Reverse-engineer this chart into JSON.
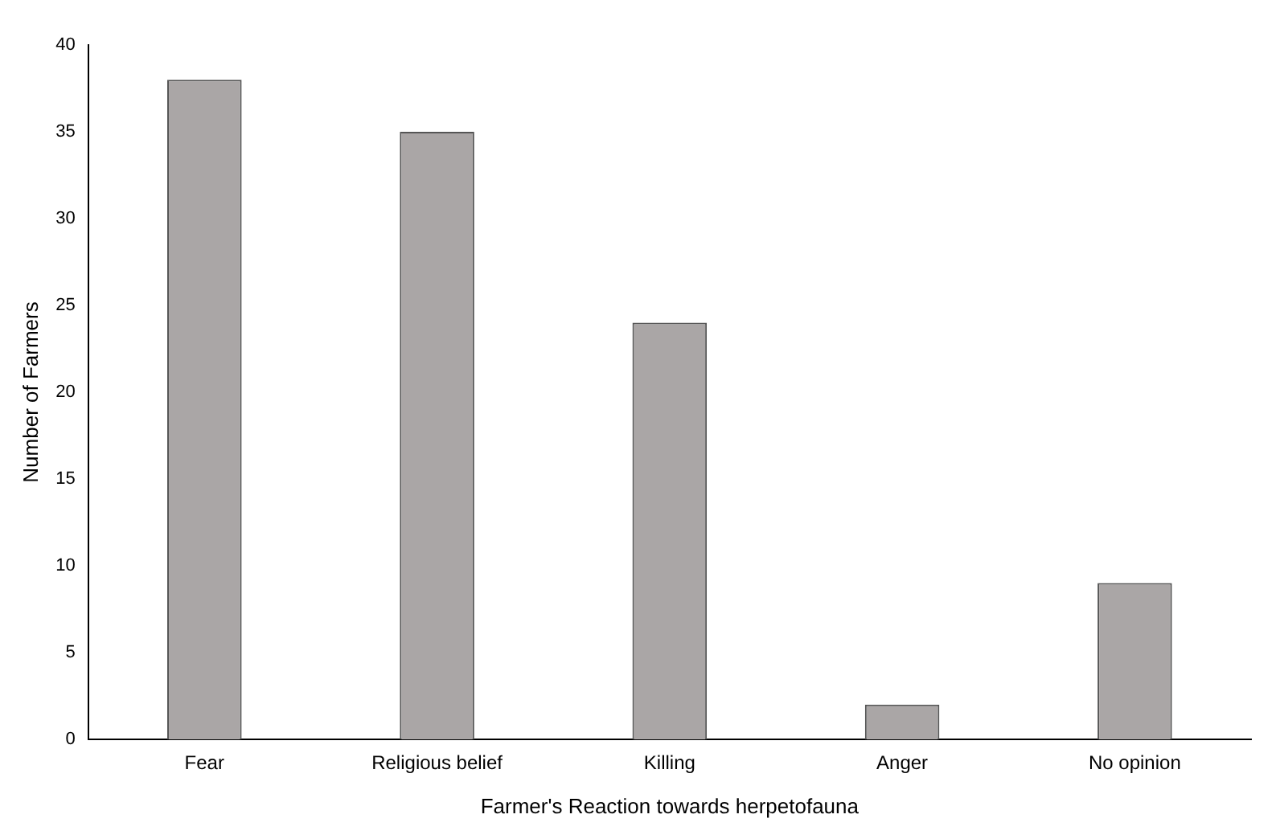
{
  "chart_data": {
    "type": "bar",
    "xlabel": "Farmer's Reaction towards herpetofauna",
    "ylabel": "Number of Farmers",
    "categories": [
      "Fear",
      "Religious belief",
      "Killing",
      "Anger",
      "No opinion"
    ],
    "values": [
      38,
      35,
      24,
      2,
      9
    ],
    "color": "#aaa6a6",
    "ylim": [
      0,
      40
    ],
    "yticks": [
      0,
      5,
      10,
      15,
      20,
      25,
      30,
      35,
      40
    ],
    "grid": false,
    "legend": false
  }
}
